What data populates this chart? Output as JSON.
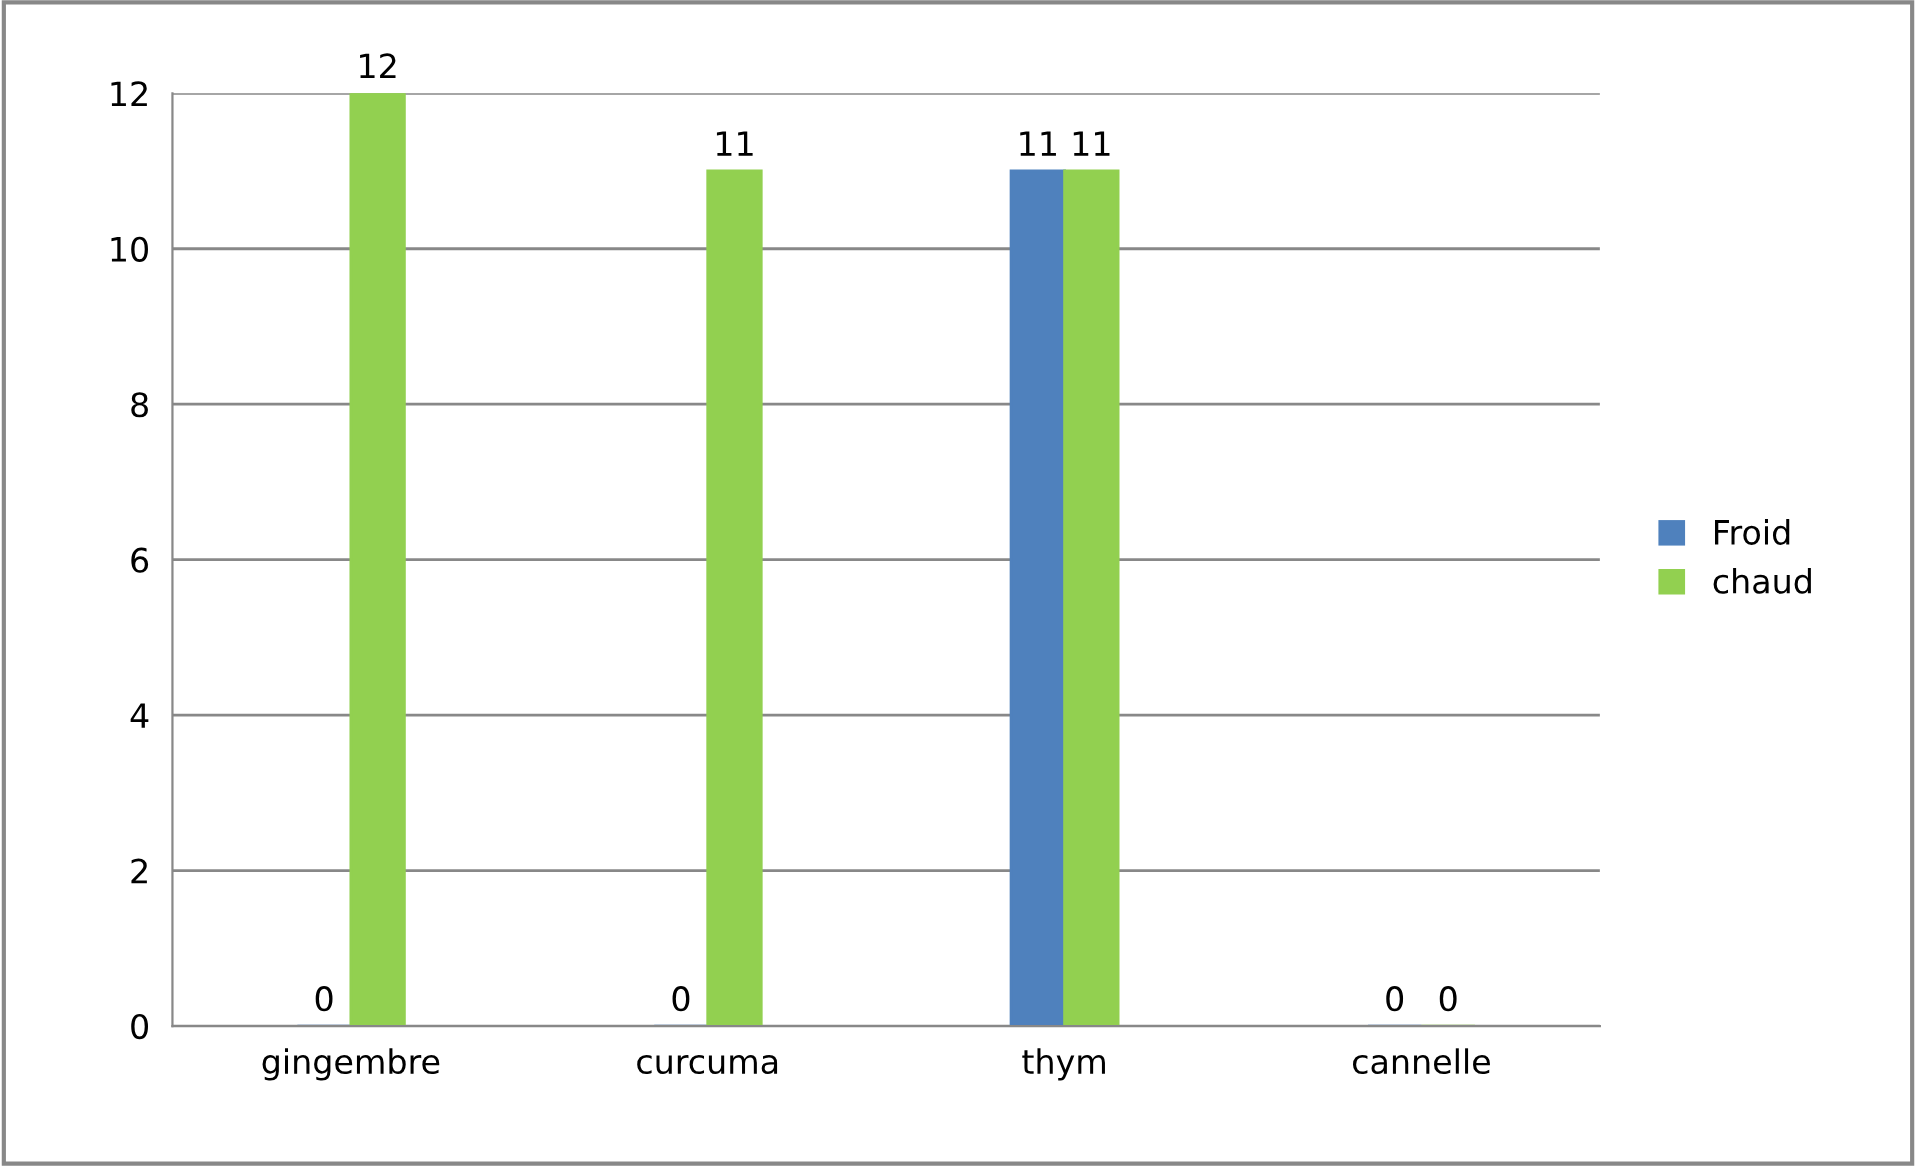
{
  "chart_data": {
    "type": "bar",
    "categories": [
      "gingembre",
      "curcuma",
      "thym",
      "cannelle"
    ],
    "series": [
      {
        "name": "Froid",
        "color": "#4f81bd",
        "values": [
          0,
          0,
          11,
          0
        ]
      },
      {
        "name": "chaud",
        "color": "#92d050",
        "values": [
          12,
          11,
          11,
          0
        ]
      }
    ],
    "ylim": [
      0,
      12
    ],
    "yticks": [
      0,
      2,
      4,
      6,
      8,
      10,
      12
    ],
    "grid": "y",
    "legend": "right",
    "data_labels": true
  }
}
